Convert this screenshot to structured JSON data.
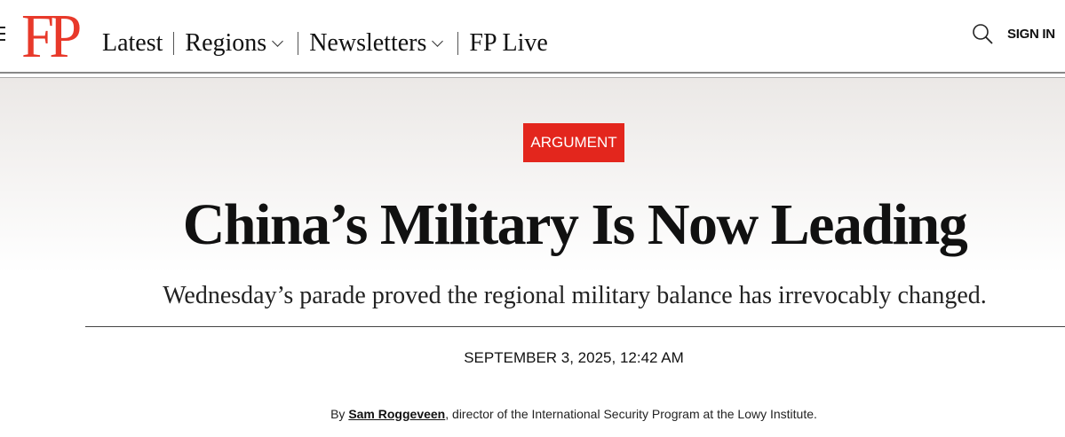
{
  "header": {
    "logo": "FP",
    "nav": [
      {
        "label": "Latest"
      },
      {
        "label": "Regions"
      },
      {
        "label": "Newsletters"
      },
      {
        "label": "FP Live"
      }
    ],
    "sign_in": "SIGN IN"
  },
  "article": {
    "tag": "ARGUMENT",
    "tag_color": "#e3261d",
    "title": "China’s Military Is Now Leading",
    "subtitle": "Wednesday’s parade proved the regional military balance has irrevocably changed.",
    "date": "SEPTEMBER 3, 2025, 12:42 AM",
    "byline": {
      "prefix": "By ",
      "author": "Sam Roggeveen",
      "suffix": ", director of the International Security Program at the Lowy Institute."
    }
  }
}
